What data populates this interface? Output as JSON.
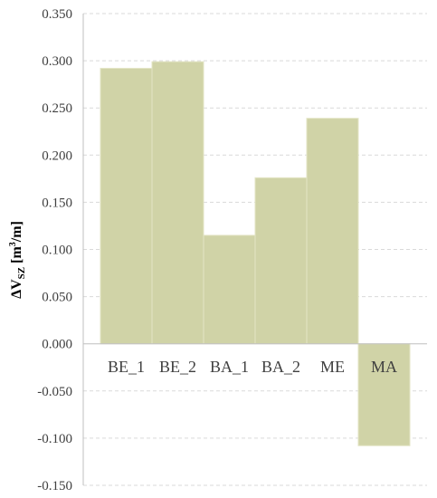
{
  "chart_data": {
    "type": "bar",
    "categories": [
      "BE_1",
      "BE_2",
      "BA_1",
      "BA_2",
      "ME",
      "MA"
    ],
    "values": [
      0.292,
      0.299,
      0.115,
      0.176,
      0.239,
      -0.108
    ],
    "title": "",
    "xlabel": "",
    "ylabel": {
      "base": "ΔV",
      "sub": "SZ",
      "unit_open": " [m",
      "unit_sup": "3",
      "unit_close": "/m]"
    },
    "ylim": [
      -0.15,
      0.35
    ],
    "yticks": [
      "0.350",
      "0.300",
      "0.250",
      "0.200",
      "0.150",
      "0.100",
      "0.050",
      "0.000",
      "-0.050",
      "-0.100",
      "-0.150"
    ],
    "ytick_values": [
      0.35,
      0.3,
      0.25,
      0.2,
      0.15,
      0.1,
      0.05,
      0.0,
      -0.05,
      -0.1,
      -0.15
    ],
    "grid": true,
    "gridlines": "horizontal-dashed",
    "bar_color": "#d0d3a7",
    "bar_edge_color": "#e3e5c6",
    "axis_color": "#bfbfbf",
    "grid_color": "#d9d9d9"
  }
}
